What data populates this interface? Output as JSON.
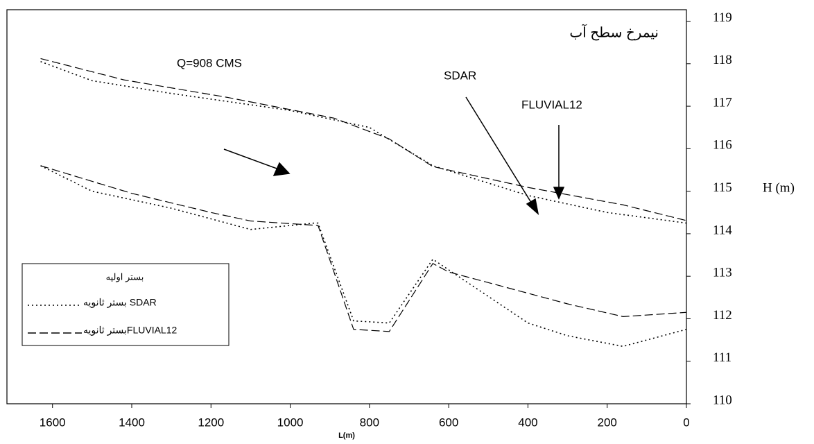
{
  "chart_data": {
    "type": "line",
    "title": "نیمرخ سطح آب",
    "xlabel": "L(m)",
    "ylabel": "H (m)",
    "annotations": [
      "Q=908 CMS",
      "SDAR",
      "FLUVIAL12"
    ],
    "legend_title": "بستر  اولیه",
    "xlim": [
      1715,
      0
    ],
    "ylim": [
      110,
      119.27
    ],
    "xticks": [
      1600,
      1400,
      1200,
      1000,
      800,
      600,
      400,
      200,
      0
    ],
    "yticks": [
      110,
      111,
      112,
      113,
      114,
      115,
      116,
      117,
      118,
      119
    ],
    "legend": "lower left",
    "series": [
      {
        "name": "بستر ثانویه SDAR",
        "dash": "dotted",
        "color": "#000",
        "x": [
          1630,
          1500,
          1300,
          1100,
          940,
          930,
          840,
          750,
          640,
          400,
          300,
          160,
          0
        ],
        "values": [
          115.6,
          115.0,
          114.6,
          114.1,
          114.25,
          114.25,
          111.95,
          111.9,
          113.4,
          111.9,
          111.6,
          111.35,
          111.75
        ]
      },
      {
        "name": "بستر ثانویهFLUVIAL12",
        "dash": "dashed",
        "color": "#000",
        "x": [
          1630,
          1400,
          1200,
          1100,
          940,
          930,
          840,
          750,
          640,
          600,
          400,
          300,
          160,
          0
        ],
        "values": [
          115.6,
          114.95,
          114.5,
          114.3,
          114.2,
          114.2,
          111.75,
          111.7,
          113.3,
          113.1,
          112.6,
          112.35,
          112.05,
          112.15
        ]
      },
      {
        "dash": "dotted",
        "color": "#000",
        "x": [
          1630,
          1500,
          1300,
          1000,
          800,
          640,
          400,
          200,
          0
        ],
        "values": [
          118.05,
          117.6,
          117.3,
          116.9,
          116.5,
          115.6,
          114.9,
          114.5,
          114.25
        ]
      },
      {
        "dash": "dashed",
        "color": "#000",
        "x": [
          1630,
          1420,
          1160,
          890,
          750,
          640,
          400,
          160,
          0
        ],
        "values": [
          118.12,
          117.62,
          117.21,
          116.72,
          116.23,
          115.58,
          115.09,
          114.68,
          114.31
        ]
      }
    ]
  }
}
